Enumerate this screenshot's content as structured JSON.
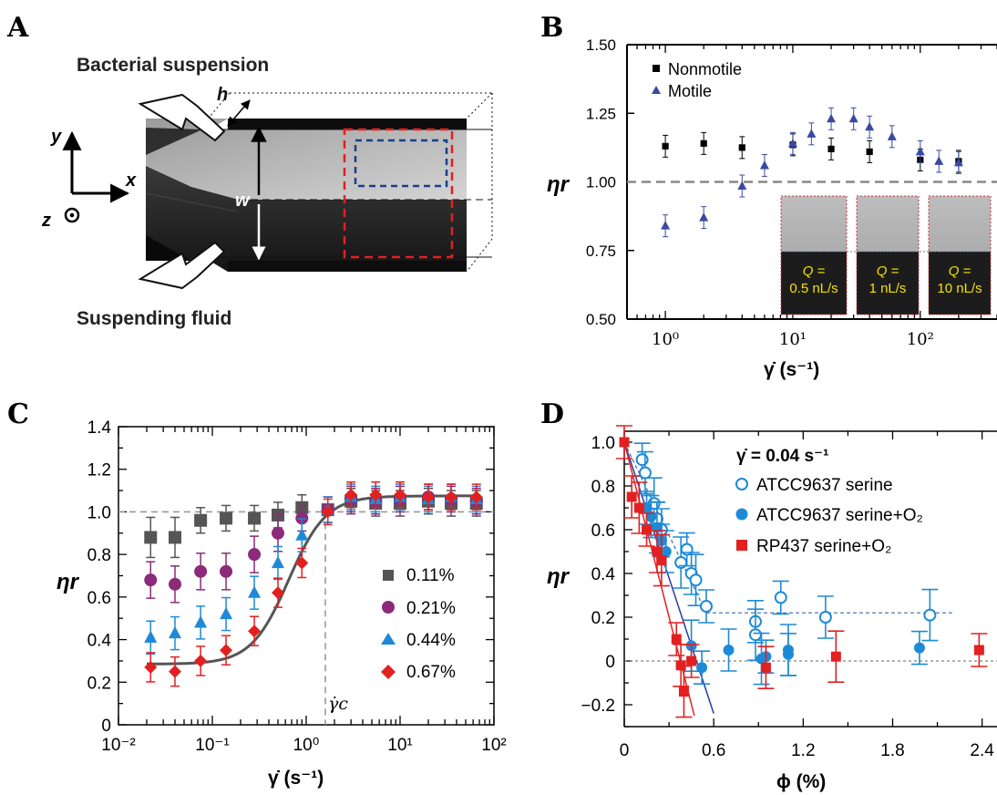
{
  "panel_letters": [
    "A",
    "B",
    "C",
    "D"
  ],
  "schematic": {
    "label_top": "Bacterial suspension",
    "label_bottom": "Suspending fluid",
    "axis_y": "y",
    "axis_x": "x",
    "axis_z": "z",
    "dim_h": "h",
    "dim_w": "w"
  },
  "chart_data": [
    {
      "panel": "B",
      "type": "scatter",
      "xscale": "log",
      "xlim": [
        0.5,
        400
      ],
      "ylim": [
        0.5,
        1.5
      ],
      "x_ticks": [
        "10⁰",
        "10¹",
        "10²"
      ],
      "y_ticks": [
        "0.50",
        "0.75",
        "1.00",
        "1.25",
        "1.50"
      ],
      "xlabel": "γ̇ (s⁻¹)",
      "ylabel": "ηr",
      "reference_line_y": 1.0,
      "series": [
        {
          "name": "Nonmotile",
          "color": "#000000",
          "marker": "square",
          "x": [
            1,
            2,
            4,
            10,
            20,
            40,
            100,
            200
          ],
          "y": [
            1.13,
            1.14,
            1.125,
            1.135,
            1.12,
            1.11,
            1.08,
            1.075
          ]
        },
        {
          "name": "Motile",
          "color": "#3a4aa0",
          "marker": "triangle",
          "x": [
            1,
            2,
            4,
            6,
            10,
            14,
            20,
            30,
            40,
            60,
            100,
            140,
            200
          ],
          "y": [
            0.84,
            0.87,
            0.985,
            1.06,
            1.14,
            1.175,
            1.23,
            1.23,
            1.2,
            1.165,
            1.11,
            1.075,
            1.07
          ]
        }
      ],
      "insets": [
        {
          "label": "Q =",
          "value": "0.5 nL/s"
        },
        {
          "label": "Q =",
          "value": "1 nL/s"
        },
        {
          "label": "Q =",
          "value": "10 nL/s"
        }
      ]
    },
    {
      "panel": "C",
      "type": "scatter",
      "xscale": "log",
      "xlim": [
        0.01,
        100
      ],
      "ylim": [
        0,
        1.4
      ],
      "x_ticks": [
        "10⁻²",
        "10⁻¹",
        "10⁰",
        "10¹",
        "10²"
      ],
      "y_ticks": [
        "0",
        "0.2",
        "0.4",
        "0.6",
        "0.8",
        "1.0",
        "1.2",
        "1.4"
      ],
      "xlabel": "γ̇ (s⁻¹)",
      "ylabel": "ηr",
      "critical_label": "γ̇c",
      "critical_x": 1.6,
      "reference_line_y": 1.0,
      "series": [
        {
          "name": "0.11%",
          "color": "#555555",
          "marker": "square",
          "x": [
            0.022,
            0.04,
            0.075,
            0.14,
            0.28,
            0.5,
            0.9,
            1.7,
            3,
            5.5,
            10,
            20,
            35,
            65
          ],
          "y": [
            0.88,
            0.88,
            0.96,
            0.97,
            0.97,
            0.985,
            1.02,
            1.01,
            1.05,
            1.04,
            1.04,
            1.05,
            1.04,
            1.04
          ]
        },
        {
          "name": "0.21%",
          "color": "#8b2b7a",
          "marker": "circle",
          "x": [
            0.022,
            0.04,
            0.075,
            0.14,
            0.28,
            0.5,
            0.9,
            1.7,
            3,
            5.5,
            10,
            20,
            35,
            65
          ],
          "y": [
            0.68,
            0.66,
            0.72,
            0.72,
            0.8,
            0.9,
            0.97,
            1.01,
            1.06,
            1.05,
            1.06,
            1.07,
            1.06,
            1.05
          ]
        },
        {
          "name": "0.44%",
          "color": "#1e8ad6",
          "marker": "triangle",
          "x": [
            0.022,
            0.04,
            0.075,
            0.14,
            0.28,
            0.5,
            0.9,
            1.7,
            3,
            5.5,
            10,
            20,
            35,
            65
          ],
          "y": [
            0.41,
            0.43,
            0.48,
            0.52,
            0.62,
            0.76,
            0.89,
            1.01,
            1.07,
            1.06,
            1.07,
            1.06,
            1.07,
            1.06
          ]
        },
        {
          "name": "0.67%",
          "color": "#e32020",
          "marker": "diamond",
          "x": [
            0.022,
            0.04,
            0.075,
            0.14,
            0.28,
            0.5,
            0.9,
            1.7,
            3,
            5.5,
            10,
            20,
            35,
            65
          ],
          "y": [
            0.27,
            0.25,
            0.3,
            0.35,
            0.44,
            0.62,
            0.76,
            1.0,
            1.08,
            1.08,
            1.08,
            1.07,
            1.07,
            1.07
          ]
        }
      ],
      "fit_curve": {
        "low": 0.285,
        "high": 1.075,
        "x_mid": 0.65,
        "width_decades": 0.2
      }
    },
    {
      "panel": "D",
      "type": "scatter",
      "xlim": [
        0,
        2.5
      ],
      "ylim": [
        -0.3,
        1.05
      ],
      "x_ticks": [
        "0",
        "0.6",
        "1.2",
        "1.8",
        "2.4"
      ],
      "y_ticks": [
        "−0.2",
        "0",
        "0.2",
        "0.4",
        "0.6",
        "0.8",
        "1.0"
      ],
      "xlabel": "ϕ (%)",
      "ylabel": "ηr",
      "annotation": "γ̇ = 0.04 s⁻¹",
      "series": [
        {
          "name": "ATCC9637 serine",
          "color": "#1e8ad6",
          "marker": "open-circle",
          "x": [
            0.12,
            0.14,
            0.2,
            0.22,
            0.25,
            0.38,
            0.42,
            0.45,
            0.48,
            0.55,
            0.88,
            0.88,
            1.05,
            1.35,
            2.05
          ],
          "y": [
            0.92,
            0.86,
            0.72,
            0.65,
            0.6,
            0.45,
            0.51,
            0.4,
            0.37,
            0.25,
            0.18,
            0.12,
            0.29,
            0.2,
            0.21
          ]
        },
        {
          "name": "ATCC9637 serine+O₂",
          "color": "#1e8ad6",
          "marker": "circle",
          "x": [
            0.15,
            0.18,
            0.22,
            0.25,
            0.28,
            0.45,
            0.52,
            0.7,
            0.92,
            0.95,
            1.1,
            1.1,
            1.98
          ],
          "y": [
            0.7,
            0.66,
            0.61,
            0.55,
            0.5,
            0.07,
            -0.03,
            0.05,
            0.01,
            0.02,
            0.03,
            0.05,
            0.06
          ]
        },
        {
          "name": "RP437 serine+O₂",
          "color": "#e32020",
          "marker": "square",
          "x": [
            0.0,
            0.05,
            0.1,
            0.15,
            0.22,
            0.25,
            0.35,
            0.38,
            0.4,
            0.45,
            0.95,
            1.42,
            2.38
          ],
          "y": [
            1.0,
            0.75,
            0.7,
            0.6,
            0.5,
            0.46,
            0.1,
            -0.02,
            -0.14,
            0.0,
            -0.03,
            0.02,
            0.05
          ]
        }
      ]
    }
  ]
}
